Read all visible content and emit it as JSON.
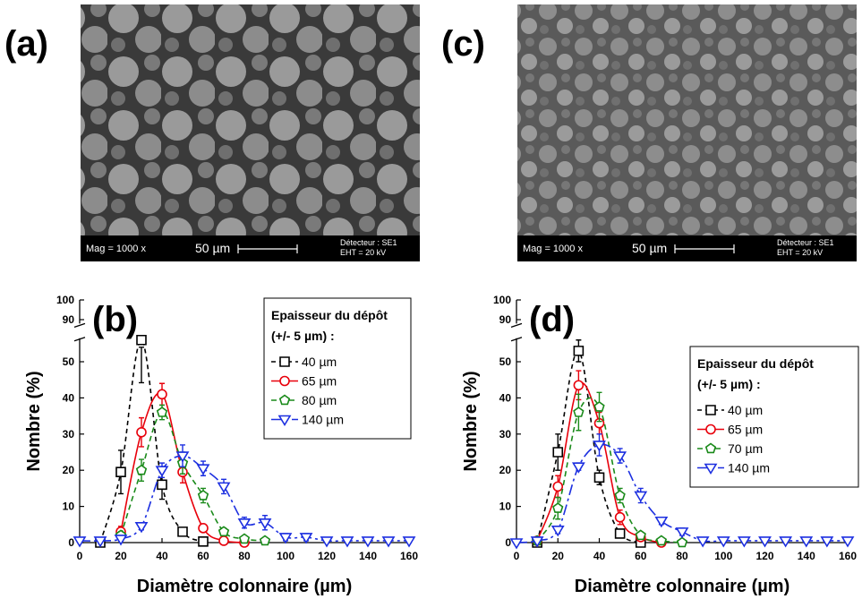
{
  "images": [
    {
      "label": "(a)",
      "mag": "Mag = 1000 x",
      "scale": "50 µm",
      "detector": "Détecteur : SE1",
      "eht": "EHT = 20 kV"
    },
    {
      "label": "(c)",
      "mag": "Mag = 1000 x",
      "scale": "50 µm",
      "detector": "Détecteur : SE1",
      "eht": "EHT = 20 kV"
    }
  ],
  "chart_data": [
    {
      "type": "line",
      "panel_label": "(b)",
      "xlabel": "Diamètre colonnaire (µm)",
      "ylabel": "Nombre (%)",
      "xlim": [
        0,
        160
      ],
      "xticks": [
        0,
        20,
        40,
        60,
        80,
        100,
        120,
        140,
        160
      ],
      "ylim": [
        0,
        100
      ],
      "yticks": [
        0,
        10,
        20,
        30,
        40,
        50,
        90,
        100
      ],
      "ybreak": [
        57,
        88
      ],
      "legend_title": [
        "Epaisseur du dépôt",
        "(+/- 5 µm) :"
      ],
      "legend_loc": "upper right",
      "series": [
        {
          "name": "40 µm",
          "color": "#000000",
          "marker": "square",
          "dash": "5,4",
          "x": [
            10,
            20,
            30,
            40,
            50,
            60
          ],
          "values": [
            0,
            19.5,
            56,
            16,
            3,
            0.3
          ],
          "errors": [
            0,
            6,
            2,
            4,
            1,
            0.5
          ]
        },
        {
          "name": "65 µm",
          "color": "#e8000b",
          "marker": "circle",
          "dash": "none",
          "x": [
            20,
            30,
            40,
            50,
            60,
            70,
            80
          ],
          "values": [
            3,
            30.5,
            41,
            19.5,
            4,
            0.5,
            0
          ],
          "errors": [
            1.5,
            4,
            3,
            3,
            1,
            0.5,
            0
          ]
        },
        {
          "name": "80 µm",
          "color": "#1a8a1a",
          "marker": "pentagon",
          "dash": "6,4",
          "x": [
            20,
            30,
            40,
            50,
            60,
            70,
            80,
            90
          ],
          "values": [
            2,
            20,
            36,
            22,
            13,
            3,
            1,
            0.5
          ],
          "errors": [
            1,
            3,
            2,
            3,
            2,
            1,
            0.5,
            0.5
          ]
        },
        {
          "name": "140 µm",
          "color": "#1c2fe0",
          "marker": "triangle-down",
          "dash": "12,4,3,4",
          "x": [
            0,
            10,
            20,
            30,
            40,
            50,
            60,
            70,
            80,
            90,
            100,
            110,
            120,
            130,
            140,
            150,
            160
          ],
          "values": [
            0.5,
            0.5,
            1,
            4.5,
            20,
            24,
            20.5,
            15.5,
            5.5,
            5.5,
            1.5,
            1.5,
            0.5,
            0.5,
            0.5,
            0.5,
            0.5
          ],
          "errors": [
            0,
            0,
            0.5,
            1,
            2,
            3,
            2,
            2,
            1.5,
            2,
            1,
            1,
            0.5,
            0.5,
            0.5,
            0.5,
            0.5
          ]
        }
      ]
    },
    {
      "type": "line",
      "panel_label": "(d)",
      "xlabel": "Diamètre colonnaire (µm)",
      "ylabel": "Nombre (%)",
      "xlim": [
        0,
        160
      ],
      "xticks": [
        0,
        20,
        40,
        60,
        80,
        100,
        120,
        140,
        160
      ],
      "ylim": [
        0,
        100
      ],
      "yticks": [
        0,
        10,
        20,
        30,
        40,
        50,
        90,
        100
      ],
      "ybreak": [
        57,
        88
      ],
      "legend_title": [
        "Epaisseur du dépôt",
        "(+/- 5 µm) :"
      ],
      "legend_loc": "center right",
      "series": [
        {
          "name": "40 µm",
          "color": "#000000",
          "marker": "square",
          "dash": "5,4",
          "x": [
            10,
            20,
            30,
            40,
            50,
            60
          ],
          "values": [
            0,
            25,
            53,
            18,
            2.5,
            0
          ],
          "errors": [
            0,
            5,
            3,
            2,
            1,
            0
          ]
        },
        {
          "name": "65 µm",
          "color": "#e8000b",
          "marker": "circle",
          "dash": "none",
          "x": [
            10,
            20,
            30,
            40,
            50,
            60,
            70
          ],
          "values": [
            0.5,
            15.5,
            43.5,
            33,
            7,
            1.5,
            0
          ],
          "errors": [
            0,
            3,
            4,
            3,
            2,
            0.5,
            0
          ]
        },
        {
          "name": "70 µm",
          "color": "#1a8a1a",
          "marker": "pentagon",
          "dash": "6,4",
          "x": [
            10,
            20,
            30,
            40,
            50,
            60,
            70,
            80
          ],
          "values": [
            0.5,
            9.5,
            36,
            37.5,
            13,
            2,
            0.5,
            0
          ],
          "errors": [
            0,
            3,
            5,
            4,
            2,
            0.5,
            0,
            0
          ]
        },
        {
          "name": "140 µm",
          "color": "#1c2fe0",
          "marker": "triangle-down",
          "dash": "12,4,3,4",
          "x": [
            0,
            10,
            20,
            30,
            40,
            50,
            60,
            70,
            80,
            90,
            100,
            110,
            120,
            130,
            140,
            150,
            160
          ],
          "values": [
            0,
            0.5,
            3.5,
            21,
            27,
            24,
            13,
            6,
            3,
            0.5,
            0.5,
            0.5,
            0.5,
            0.5,
            0.5,
            0.5,
            0.5
          ],
          "errors": [
            0,
            0,
            1,
            1,
            3,
            2,
            2,
            1,
            1,
            0.5,
            0.5,
            0.5,
            0.5,
            0.5,
            0.5,
            0.5,
            0.5
          ]
        }
      ]
    }
  ]
}
